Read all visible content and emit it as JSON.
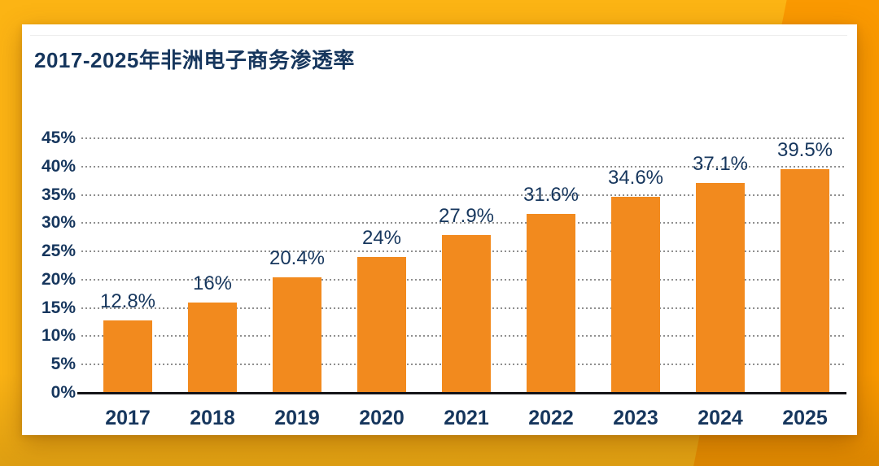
{
  "chart_data": {
    "type": "bar",
    "title": "2017-2025年非洲电子商务渗透率",
    "categories": [
      "2017",
      "2018",
      "2019",
      "2020",
      "2021",
      "2022",
      "2023",
      "2024",
      "2025"
    ],
    "values": [
      12.8,
      16,
      20.4,
      24,
      27.9,
      31.6,
      34.6,
      37.1,
      39.5
    ],
    "value_labels": [
      "12.8%",
      "16%",
      "20.4%",
      "24%",
      "27.9%",
      "31.6%",
      "34.6%",
      "37.1%",
      "39.5%"
    ],
    "xlabel": "",
    "ylabel": "",
    "ylim": [
      0,
      45
    ],
    "ytick_values": [
      0,
      5,
      10,
      15,
      20,
      25,
      30,
      35,
      40,
      45
    ],
    "ytick_labels": [
      "0%",
      "5%",
      "10%",
      "15%",
      "20%",
      "25%",
      "30%",
      "35%",
      "40%",
      "45%"
    ],
    "grid": "dotted horizontal",
    "legend": "none",
    "bar_color": "#F28A1E",
    "text_color": "#16365D"
  },
  "colors": {
    "background-gold": "#FCB414",
    "background-orange": "#FA9901",
    "card": "#FFFFFF",
    "bar": "#F28A1E",
    "text": "#16365D",
    "axis-line": "#141418",
    "gridline": "#8F8F8F"
  }
}
